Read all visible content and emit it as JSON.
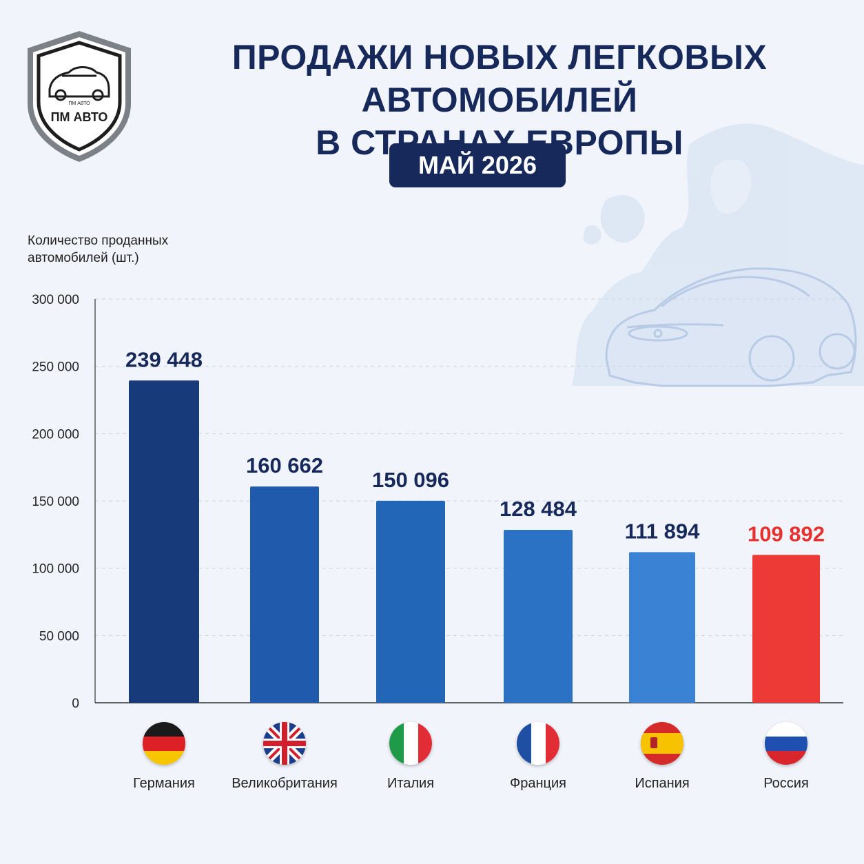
{
  "brand": {
    "logo_text": "ПМ АВТО",
    "logo_small_text": "ПМ АВТО"
  },
  "header": {
    "title_line1": "ПРОДАЖИ НОВЫХ ЛЕГКОВЫХ АВТОМОБИЛЕЙ",
    "title_line2": "В СТРАНАХ ЕВРОПЫ",
    "period": "МАЙ 2026"
  },
  "colors": {
    "title": "#16295a",
    "highlight": "#e8312f",
    "bars": [
      "#163a7a",
      "#1f5aad",
      "#2266b8",
      "#2c72c4",
      "#3a82d3",
      "#ee3a36"
    ],
    "label_default": "#16295a"
  },
  "chart_data": {
    "type": "bar",
    "title": "ПРОДАЖИ НОВЫХ ЛЕГКОВЫХ АВТОМОБИЛЕЙ В СТРАНАХ ЕВРОПЫ",
    "subtitle": "МАЙ 2026",
    "ylabel_line1": "Количество проданных",
    "ylabel_line2": "автомобилей (шт.)",
    "xlabel": "",
    "categories": [
      "Германия",
      "Великобритания",
      "Италия",
      "Франция",
      "Испания",
      "Россия"
    ],
    "values": [
      239448,
      160662,
      150096,
      128484,
      111894,
      109892
    ],
    "value_labels": [
      "239 448",
      "160 662",
      "150 096",
      "128 484",
      "111 894",
      "109 892"
    ],
    "flags": [
      "germany-flag",
      "uk-flag",
      "italy-flag",
      "france-flag",
      "spain-flag",
      "russia-flag"
    ],
    "highlight_index": 5,
    "ylim": [
      0,
      300000
    ],
    "yticks": [
      0,
      50000,
      100000,
      150000,
      200000,
      250000,
      300000
    ],
    "ytick_labels": [
      "0",
      "50 000",
      "100 000",
      "150 000",
      "200 000",
      "250 000",
      "300 000"
    ],
    "grid": true
  }
}
